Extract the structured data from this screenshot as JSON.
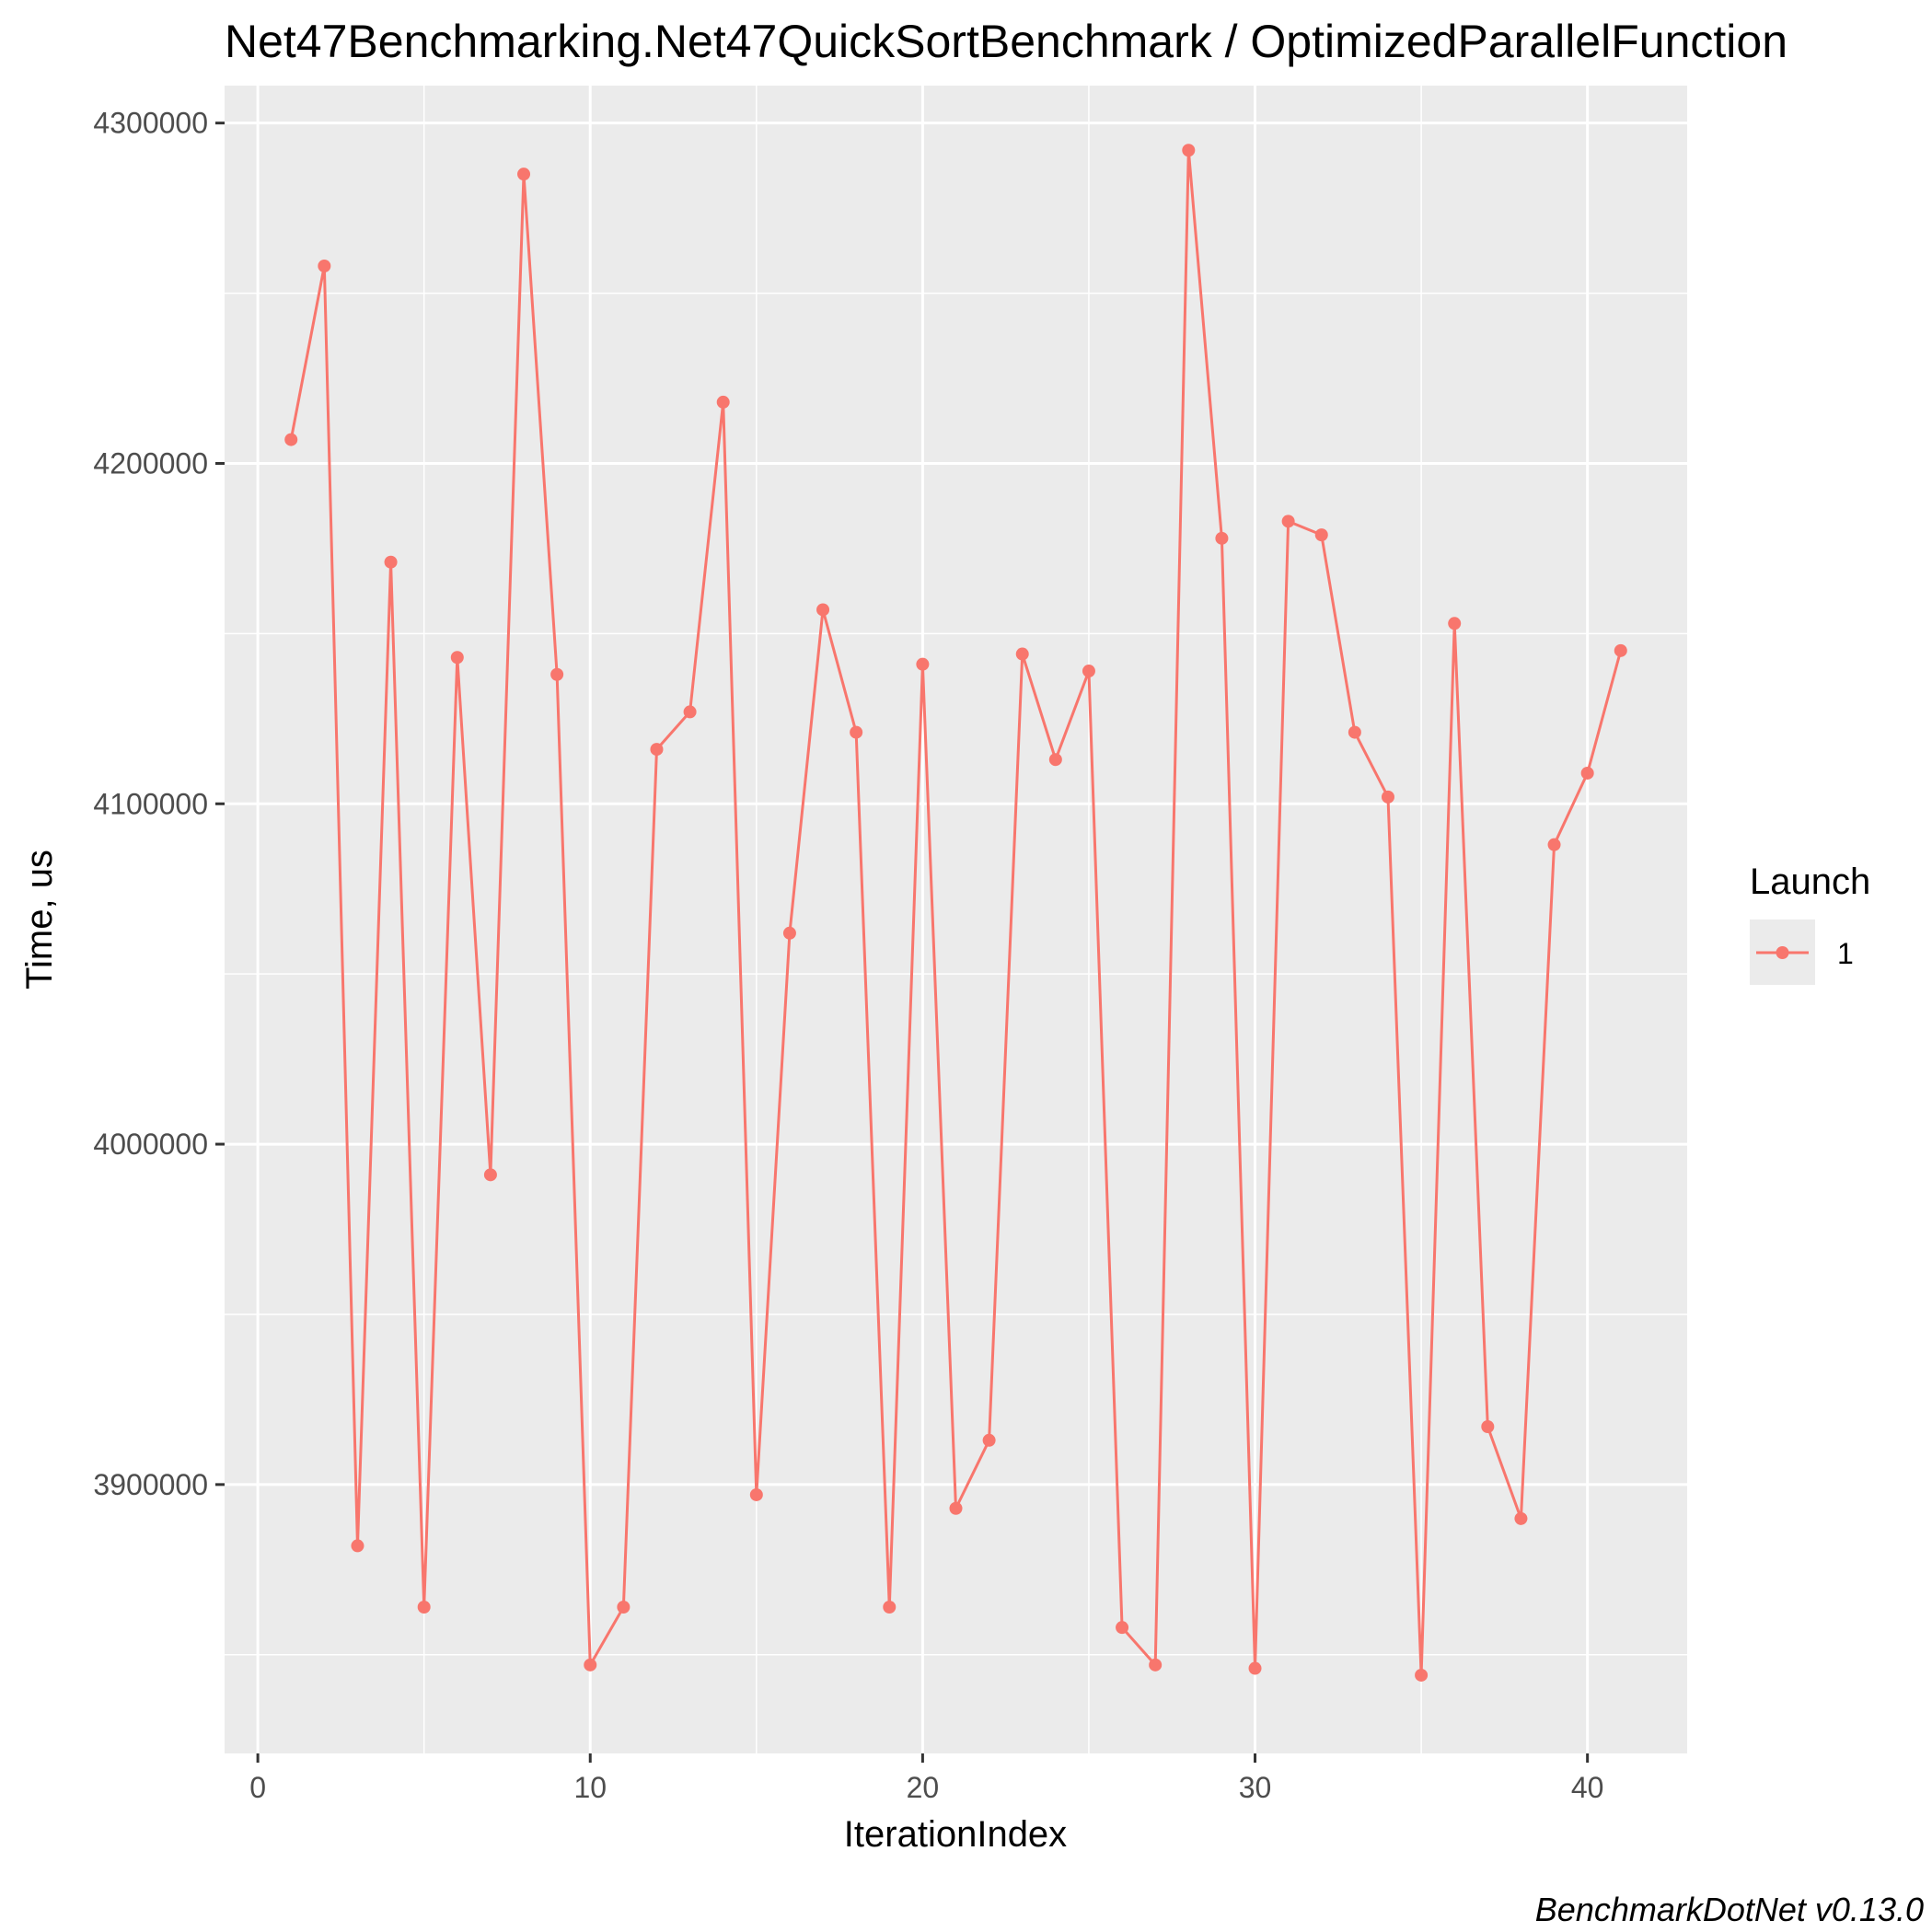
{
  "chart_data": {
    "type": "line",
    "title": "Net47Benchmarking.Net47QuickSortBenchmark / OptimizedParallelFunction",
    "xlabel": "IterationIndex",
    "ylabel": "Time, us",
    "caption": "BenchmarkDotNet v0.13.0",
    "xlim": [
      -1,
      43
    ],
    "ylim": [
      3821000,
      4311000
    ],
    "x_ticks": [
      0,
      10,
      20,
      30,
      40
    ],
    "x_tick_labels": [
      "0",
      "10",
      "20",
      "30",
      "40"
    ],
    "y_ticks": [
      3900000,
      4000000,
      4100000,
      4200000,
      4300000
    ],
    "y_tick_labels": [
      "3900000",
      "4000000",
      "4100000",
      "4200000",
      "4300000"
    ],
    "grid": true,
    "legend": {
      "title": "Launch",
      "position": "right"
    },
    "series": [
      {
        "name": "1",
        "color": "#F8766D",
        "x": [
          1,
          2,
          3,
          4,
          5,
          6,
          7,
          8,
          9,
          10,
          11,
          12,
          13,
          14,
          15,
          16,
          17,
          18,
          19,
          20,
          21,
          22,
          23,
          24,
          25,
          26,
          27,
          28,
          29,
          30,
          31,
          32,
          33,
          34,
          35,
          36,
          37,
          38,
          39,
          40,
          41
        ],
        "y": [
          4207000,
          4258000,
          3882000,
          4171000,
          3864000,
          4143000,
          3991000,
          4285000,
          4138000,
          3847000,
          3864000,
          4116000,
          4127000,
          4218000,
          3897000,
          4062000,
          4157000,
          4121000,
          3864000,
          4141000,
          3893000,
          3913000,
          4144000,
          4113000,
          4139000,
          3858000,
          3847000,
          4292000,
          4178000,
          3846000,
          4183000,
          4179000,
          4121000,
          4102000,
          3844000,
          4153000,
          3917000,
          3890000,
          4088000,
          4109000,
          4145000
        ]
      }
    ]
  }
}
